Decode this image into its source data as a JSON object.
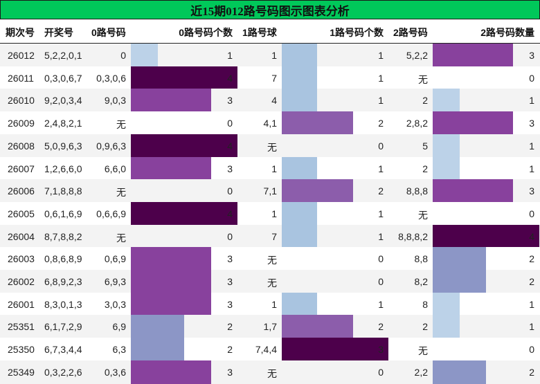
{
  "title": "近15期012路号码图示图表分析",
  "headers": {
    "issue": "期次号",
    "draw": "开奖号",
    "r0": "0路号码",
    "r0count": "0路号码个数",
    "r1": "1路号球",
    "r1count": "1路号码个数",
    "r2": "2路号码",
    "r2count": "2路号码数量"
  },
  "colors": {
    "title_bg": "#00c85a",
    "v1": "#bcd2e8",
    "v1_alt": "#a9c4e0",
    "v2": "#8c96c6",
    "v2_r1": "#8c5dab",
    "v3": "#88419d",
    "v4": "#4d004b"
  },
  "rows": [
    {
      "issue": "26012",
      "draw": "5,2,2,0,1",
      "r0": "0",
      "r0count": "1",
      "r1": "1",
      "r1count": "1",
      "r2": "5,2,2",
      "r2count": "3"
    },
    {
      "issue": "26011",
      "draw": "0,3,0,6,7",
      "r0": "0,3,0,6",
      "r0count": "4",
      "r1": "7",
      "r1count": "1",
      "r2": "无",
      "r2count": "0"
    },
    {
      "issue": "26010",
      "draw": "9,2,0,3,4",
      "r0": "9,0,3",
      "r0count": "3",
      "r1": "4",
      "r1count": "1",
      "r2": "2",
      "r2count": "1"
    },
    {
      "issue": "26009",
      "draw": "2,4,8,2,1",
      "r0": "无",
      "r0count": "0",
      "r1": "4,1",
      "r1count": "2",
      "r2": "2,8,2",
      "r2count": "3"
    },
    {
      "issue": "26008",
      "draw": "5,0,9,6,3",
      "r0": "0,9,6,3",
      "r0count": "4",
      "r1": "无",
      "r1count": "0",
      "r2": "5",
      "r2count": "1"
    },
    {
      "issue": "26007",
      "draw": "1,2,6,6,0",
      "r0": "6,6,0",
      "r0count": "3",
      "r1": "1",
      "r1count": "1",
      "r2": "2",
      "r2count": "1"
    },
    {
      "issue": "26006",
      "draw": "7,1,8,8,8",
      "r0": "无",
      "r0count": "0",
      "r1": "7,1",
      "r1count": "2",
      "r2": "8,8,8",
      "r2count": "3"
    },
    {
      "issue": "26005",
      "draw": "0,6,1,6,9",
      "r0": "0,6,6,9",
      "r0count": "4",
      "r1": "1",
      "r1count": "1",
      "r2": "无",
      "r2count": "0"
    },
    {
      "issue": "26004",
      "draw": "8,7,8,8,2",
      "r0": "无",
      "r0count": "0",
      "r1": "7",
      "r1count": "1",
      "r2": "8,8,8,2",
      "r2count": "4"
    },
    {
      "issue": "26003",
      "draw": "0,8,6,8,9",
      "r0": "0,6,9",
      "r0count": "3",
      "r1": "无",
      "r1count": "0",
      "r2": "8,8",
      "r2count": "2"
    },
    {
      "issue": "26002",
      "draw": "6,8,9,2,3",
      "r0": "6,9,3",
      "r0count": "3",
      "r1": "无",
      "r1count": "0",
      "r2": "8,2",
      "r2count": "2"
    },
    {
      "issue": "26001",
      "draw": "8,3,0,1,3",
      "r0": "3,0,3",
      "r0count": "3",
      "r1": "1",
      "r1count": "1",
      "r2": "8",
      "r2count": "1"
    },
    {
      "issue": "25351",
      "draw": "6,1,7,2,9",
      "r0": "6,9",
      "r0count": "2",
      "r1": "1,7",
      "r1count": "2",
      "r2": "2",
      "r2count": "1"
    },
    {
      "issue": "25350",
      "draw": "6,7,3,4,4",
      "r0": "6,3",
      "r0count": "2",
      "r1": "7,4,4",
      "r1count": "3",
      "r2": "无",
      "r2count": "0"
    },
    {
      "issue": "25349",
      "draw": "0,3,2,2,6",
      "r0": "0,3,6",
      "r0count": "3",
      "r1": "无",
      "r1count": "0",
      "r2": "2,2",
      "r2count": "2"
    }
  ],
  "chart_data": {
    "type": "table",
    "title": "近15期012路号码图示图表分析",
    "columns": [
      "期次号",
      "开奖号",
      "0路号码",
      "0路号码个数",
      "1路号球",
      "1路号码个数",
      "2路号码",
      "2路号码数量"
    ],
    "categories": [
      "26012",
      "26011",
      "26010",
      "26009",
      "26008",
      "26007",
      "26006",
      "26005",
      "26004",
      "26003",
      "26002",
      "26001",
      "25351",
      "25350",
      "25349"
    ],
    "series": [
      {
        "name": "0路号码个数",
        "values": [
          1,
          4,
          3,
          0,
          4,
          3,
          0,
          4,
          0,
          3,
          3,
          3,
          2,
          2,
          3
        ]
      },
      {
        "name": "1路号码个数",
        "values": [
          1,
          1,
          1,
          2,
          0,
          1,
          2,
          1,
          1,
          0,
          0,
          1,
          2,
          3,
          0
        ]
      },
      {
        "name": "2路号码数量",
        "values": [
          3,
          0,
          1,
          3,
          1,
          1,
          3,
          0,
          4,
          2,
          2,
          1,
          1,
          0,
          2
        ]
      }
    ],
    "bar_scale_max": 4
  }
}
